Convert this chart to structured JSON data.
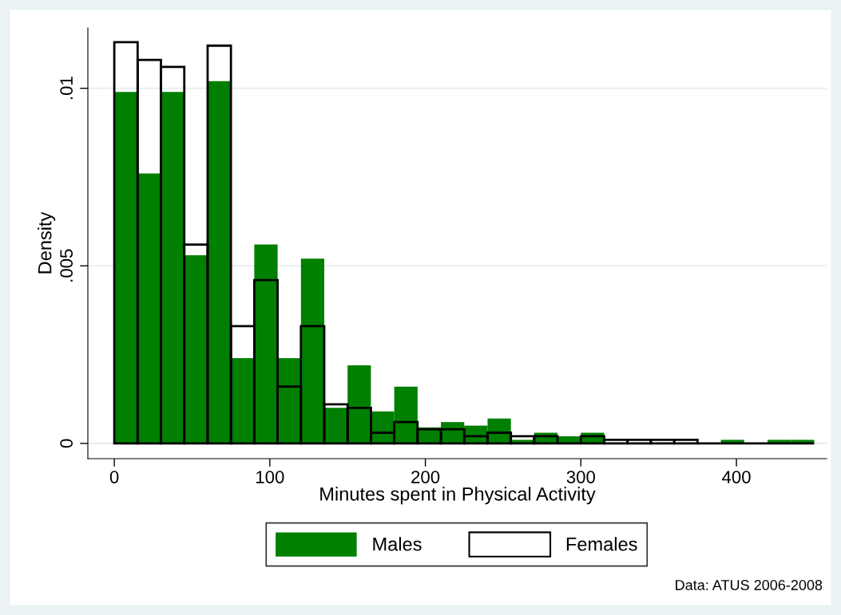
{
  "chart_data": {
    "type": "histogram",
    "xlabel": "Minutes spent in Physical Activity",
    "ylabel": "Density",
    "bins": [
      0,
      15,
      30,
      45,
      60,
      75,
      90,
      105,
      120,
      135,
      150,
      165,
      180,
      195,
      210,
      225,
      240,
      255,
      270,
      285,
      300,
      315,
      330,
      345,
      360,
      375,
      390,
      405,
      420,
      435,
      450
    ],
    "series": [
      {
        "name": "Males",
        "color": "#007f00",
        "values": [
          0.0099,
          0.0076,
          0.0099,
          0.0053,
          0.0102,
          0.0024,
          0.0056,
          0.0024,
          0.0052,
          0.001,
          0.0022,
          0.0009,
          0.0016,
          0.00045,
          0.0006,
          0.0005,
          0.0007,
          0.0001,
          0.0003,
          0.0002,
          0.0003,
          0,
          null,
          0,
          0,
          0,
          0.0001,
          0,
          0.0001,
          0.0001
        ]
      },
      {
        "name": "Females",
        "color": "#000000",
        "values": [
          0.0113,
          0.0108,
          0.0106,
          0.0056,
          0.0112,
          0.0033,
          0.0046,
          0.0016,
          0.0033,
          0.0011,
          0.001,
          0.0003,
          0.0006,
          0.0004,
          0.0004,
          0.0002,
          0.0003,
          0.0002,
          0.0002,
          0,
          0.0002,
          0.0001,
          0.0001,
          0.0001,
          0.0001,
          0,
          0,
          0,
          0,
          0
        ]
      }
    ],
    "xlim": [
      -17,
      458
    ],
    "xticks": [
      0,
      100,
      200,
      300,
      400
    ],
    "ylim": [
      -0.00043,
      0.0117
    ],
    "yticks": [
      {
        "value": 0,
        "label": "0"
      },
      {
        "value": 0.005,
        "label": ".005"
      },
      {
        "value": 0.01,
        "label": ".01"
      }
    ],
    "grid": "y",
    "legend": "bottom",
    "annotations": [
      "Data: ATUS 2006-2008"
    ]
  }
}
